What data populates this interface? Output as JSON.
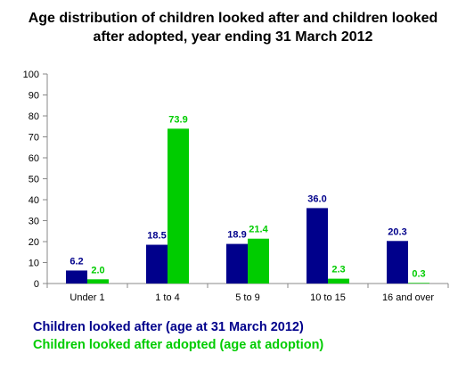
{
  "chart_data": {
    "type": "bar",
    "title_lines": [
      "Age distribution of children looked after and children looked",
      "after adopted, year ending 31 March 2012"
    ],
    "categories": [
      "Under 1",
      "1 to 4",
      "5 to 9",
      "10 to 15",
      "16 and over"
    ],
    "series": [
      {
        "name": "Children looked after (age at 31 March 2012)",
        "color": "#00008B",
        "values": [
          6.2,
          18.5,
          18.9,
          36.0,
          20.3
        ],
        "labels": [
          "6.2",
          "18.5",
          "18.9",
          "36.0",
          "20.3"
        ]
      },
      {
        "name": "Children looked after adopted (age at adoption)",
        "color": "#00CC00",
        "values": [
          2.0,
          73.9,
          21.4,
          2.3,
          0.3
        ],
        "labels": [
          "2.0",
          "73.9",
          "21.4",
          "2.3",
          "0.3"
        ]
      }
    ],
    "ylim": [
      0,
      100
    ],
    "y_ticks": [
      "0",
      "10",
      "20",
      "30",
      "40",
      "50",
      "60",
      "70",
      "80",
      "90",
      "100"
    ],
    "grid": false,
    "legend_position": "bottom-left"
  }
}
